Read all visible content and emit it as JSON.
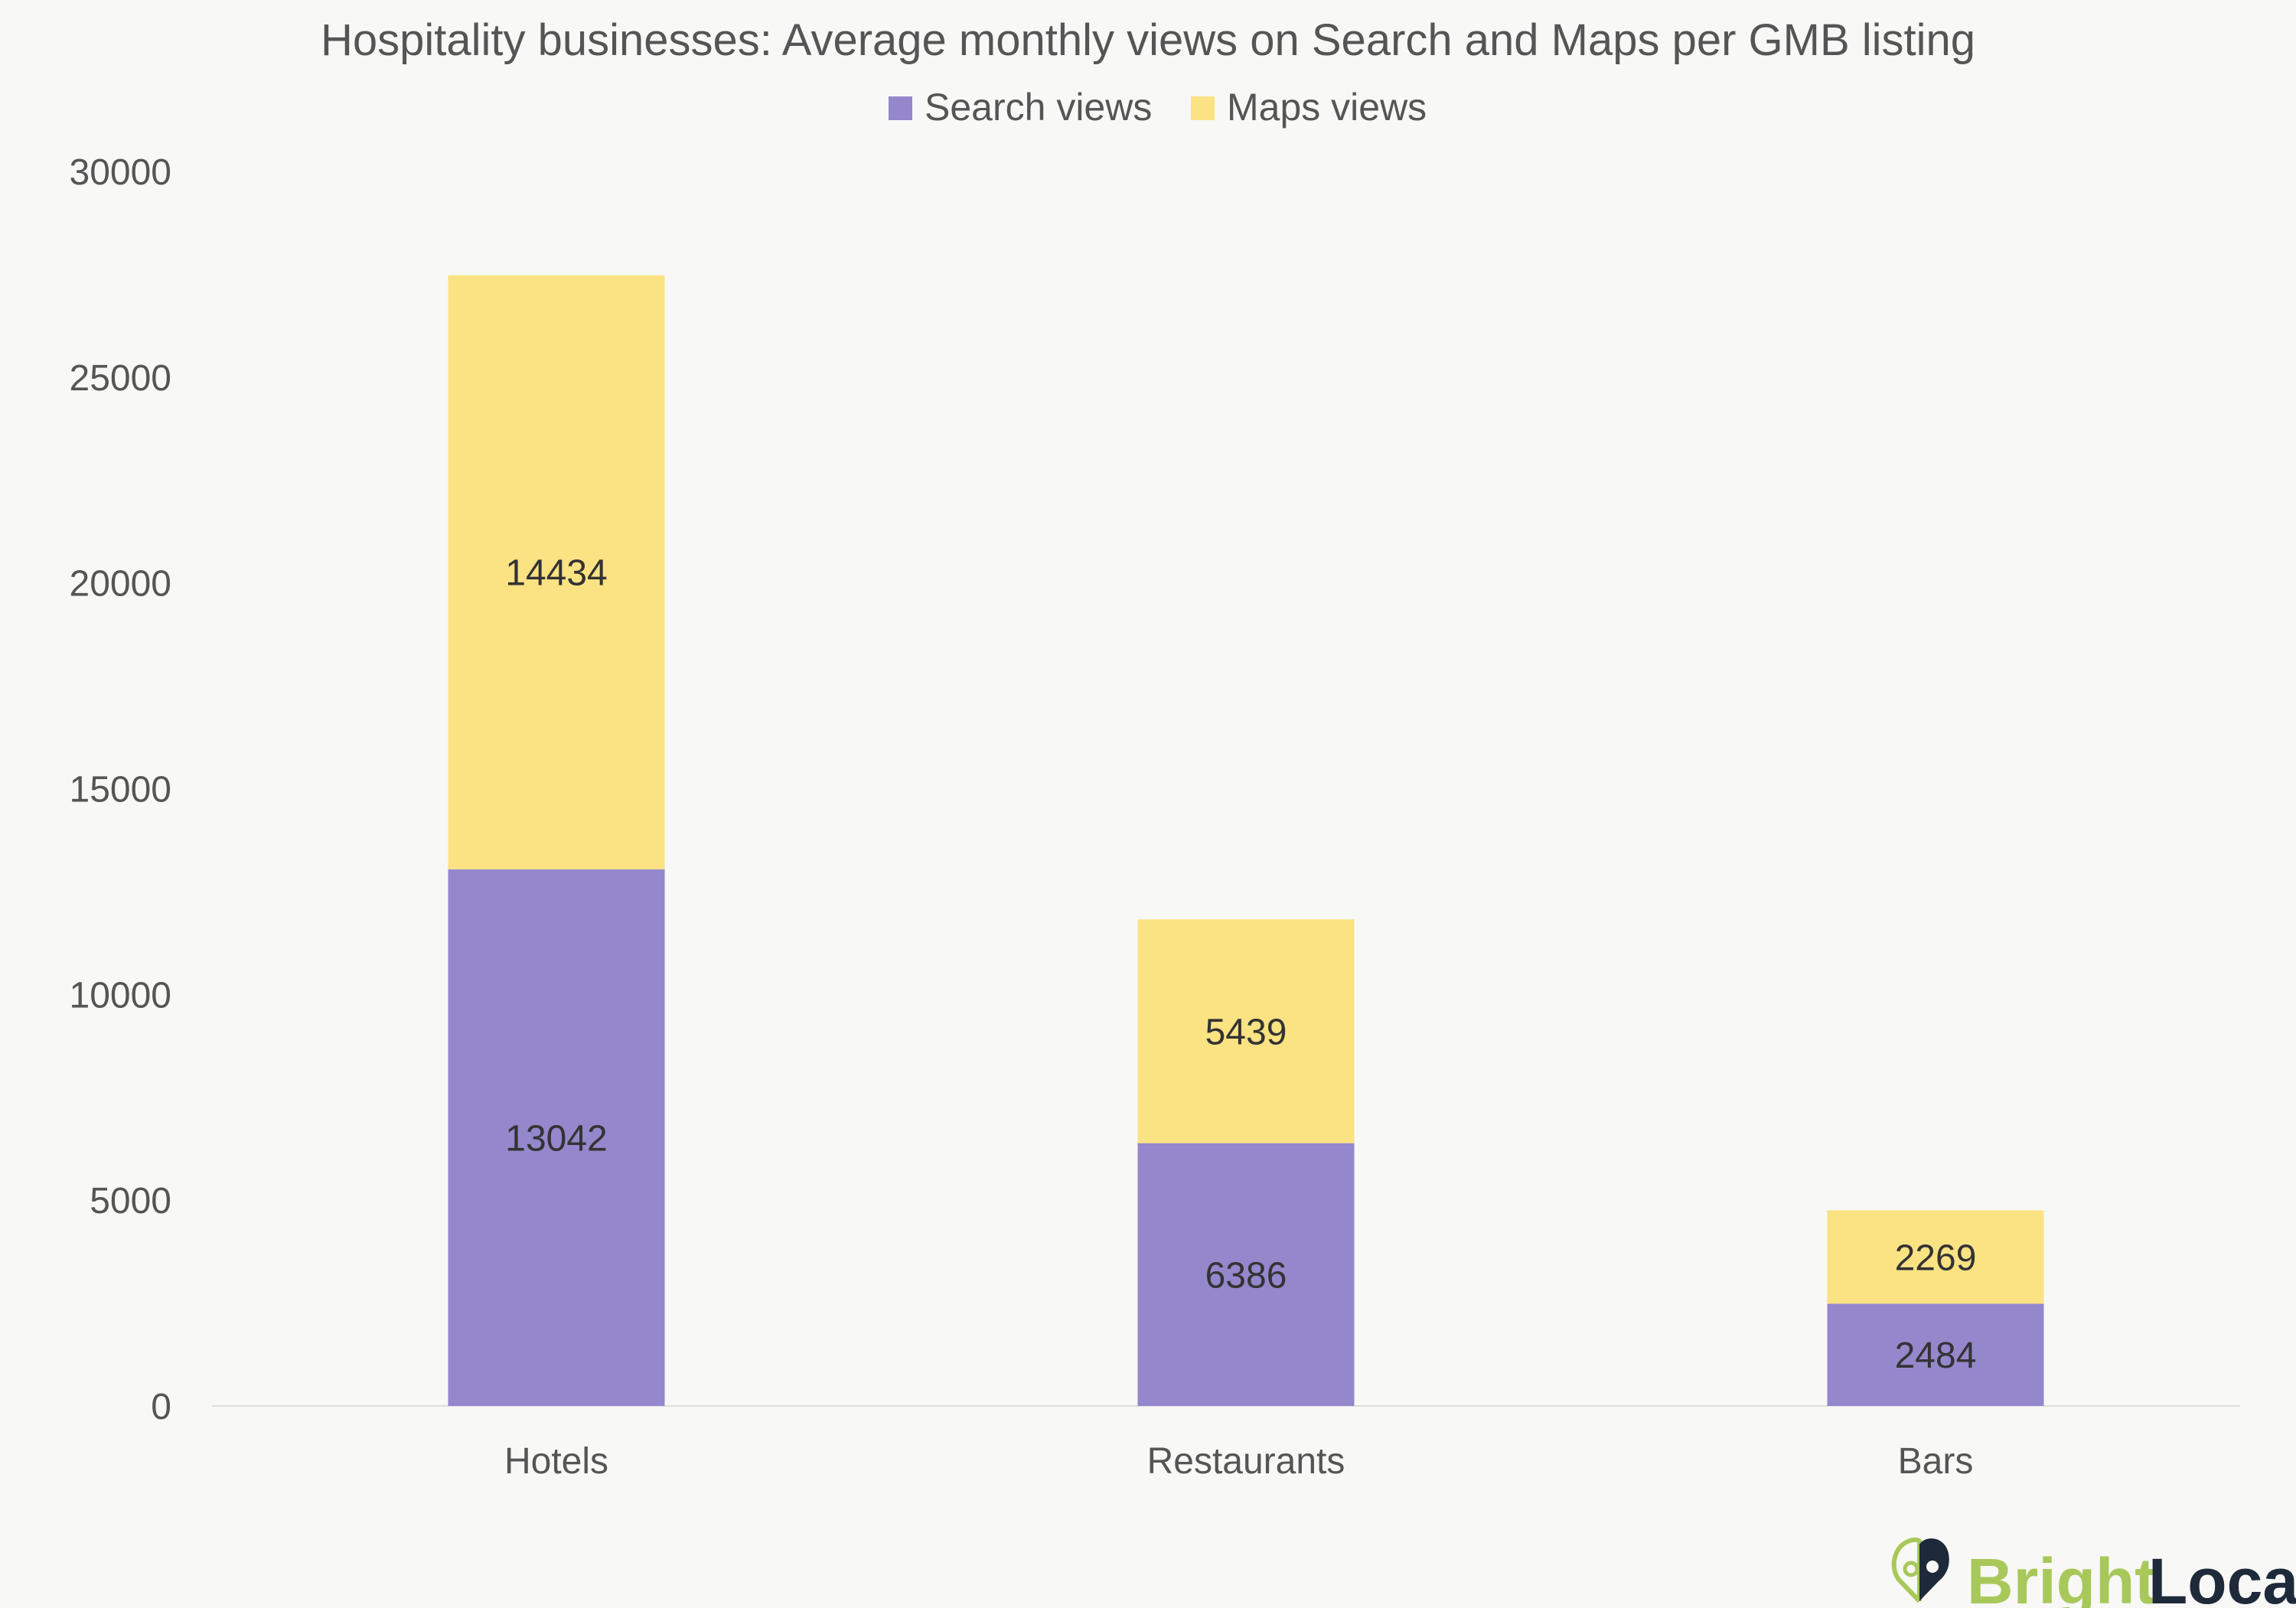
{
  "chart_data": {
    "type": "bar",
    "stacked": true,
    "title": "Hospitality businesses: Average monthly views on Search and Maps per GMB listing",
    "categories": [
      "Hotels",
      "Restaurants",
      "Bars"
    ],
    "series": [
      {
        "name": "Search views",
        "color": "#9487cc",
        "values": [
          13042,
          6386,
          2484
        ]
      },
      {
        "name": "Maps views",
        "color": "#fbe283",
        "values": [
          14434,
          5439,
          2269
        ]
      }
    ],
    "ylim": [
      0,
      30000
    ],
    "yticks": [
      0,
      5000,
      10000,
      15000,
      20000,
      25000,
      30000
    ],
    "grid": false,
    "legend_position": "top-center",
    "xlabel": "",
    "ylabel": ""
  },
  "logo": {
    "part1": "Bright",
    "part2": "Local",
    "color1": "#a8c85a",
    "color2": "#1e2a3a"
  }
}
